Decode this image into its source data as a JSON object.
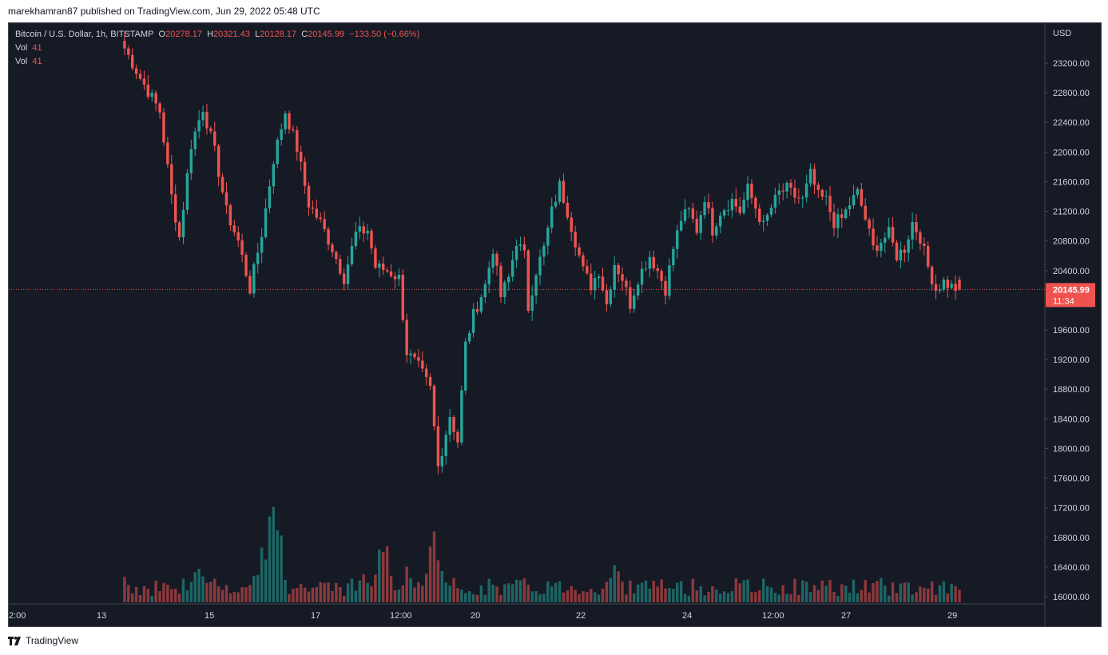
{
  "publish_info": "marekhamran87 published on TradingView.com, Jun 29, 2022 05:48 UTC",
  "legend": {
    "symbol": "Bitcoin / U.S. Dollar, 1h, BITSTAMP",
    "open_label": "O",
    "open": "20278.17",
    "high_label": "H",
    "high": "20321.43",
    "low_label": "L",
    "low": "20128.17",
    "close_label": "C",
    "close": "20145.99",
    "change": "−133.50 (−0.66%)",
    "vol1_label": "Vol",
    "vol1": "41",
    "vol2_label": "Vol",
    "vol2": "41"
  },
  "price_axis": {
    "currency": "USD",
    "ticks": [
      "23200.00",
      "22800.00",
      "22400.00",
      "22000.00",
      "21600.00",
      "21200.00",
      "20800.00",
      "20400.00",
      "19600.00",
      "19200.00",
      "18800.00",
      "18400.00",
      "18000.00",
      "17600.00",
      "17200.00",
      "16800.00",
      "16400.00",
      "16000.00"
    ],
    "last_price": "20145.99",
    "countdown": "11:34"
  },
  "time_axis": {
    "ticks": [
      "2:00",
      "13",
      "15",
      "17",
      "12:00",
      "20",
      "22",
      "24",
      "12:00",
      "27",
      "29"
    ]
  },
  "colors": {
    "up": "#26a69a",
    "down": "#ef5350",
    "background": "#161a25",
    "text": "#d1d4dc",
    "last_price_line": "#ef5350"
  },
  "footer": {
    "brand": "TradingView",
    "logo_icon": "tradingview-logo-icon"
  },
  "chart_data": {
    "type": "candlestick",
    "symbol": "Bitcoin / U.S. Dollar",
    "interval": "1h",
    "exchange": "BITSTAMP",
    "ylim": [
      15900,
      23500
    ],
    "x_ticks": [
      "2:00",
      "13",
      "15",
      "17",
      "12:00",
      "20",
      "22",
      "24",
      "12:00",
      "27",
      "29"
    ],
    "close_path": [
      [
        0,
        23500
      ],
      [
        5,
        23000
      ],
      [
        10,
        22550
      ],
      [
        13,
        21400
      ],
      [
        15,
        20850
      ],
      [
        18,
        22100
      ],
      [
        21,
        22600
      ],
      [
        24,
        22000
      ],
      [
        27,
        21200
      ],
      [
        30,
        20800
      ],
      [
        33,
        20150
      ],
      [
        36,
        20900
      ],
      [
        39,
        21900
      ],
      [
        42,
        22550
      ],
      [
        45,
        22050
      ],
      [
        48,
        21300
      ],
      [
        51,
        21050
      ],
      [
        54,
        20700
      ],
      [
        57,
        20300
      ],
      [
        60,
        20900
      ],
      [
        63,
        20950
      ],
      [
        65,
        20450
      ],
      [
        68,
        20400
      ],
      [
        71,
        20300
      ],
      [
        73,
        19300
      ],
      [
        76,
        19100
      ],
      [
        79,
        18800
      ],
      [
        81,
        17750
      ],
      [
        84,
        18450
      ],
      [
        86,
        18100
      ],
      [
        88,
        19400
      ],
      [
        90,
        19800
      ],
      [
        93,
        20200
      ],
      [
        95,
        20700
      ],
      [
        97,
        20050
      ],
      [
        99,
        20300
      ],
      [
        101,
        20800
      ],
      [
        103,
        20600
      ],
      [
        104,
        19900
      ],
      [
        106,
        20400
      ],
      [
        108,
        20700
      ],
      [
        110,
        21200
      ],
      [
        112,
        21550
      ],
      [
        114,
        21200
      ],
      [
        116,
        20800
      ],
      [
        118,
        20400
      ],
      [
        120,
        20200
      ],
      [
        122,
        20400
      ],
      [
        124,
        19950
      ],
      [
        126,
        20500
      ],
      [
        128,
        20300
      ],
      [
        130,
        19950
      ],
      [
        132,
        20300
      ],
      [
        135,
        20600
      ],
      [
        137,
        20400
      ],
      [
        139,
        20150
      ],
      [
        141,
        20700
      ],
      [
        143,
        21100
      ],
      [
        145,
        21200
      ],
      [
        147,
        20950
      ],
      [
        149,
        21400
      ],
      [
        151,
        20950
      ],
      [
        153,
        21200
      ],
      [
        156,
        21350
      ],
      [
        158,
        21200
      ],
      [
        160,
        21500
      ],
      [
        162,
        21250
      ],
      [
        164,
        21000
      ],
      [
        166,
        21250
      ],
      [
        168,
        21450
      ],
      [
        170,
        21500
      ],
      [
        172,
        21400
      ],
      [
        174,
        21350
      ],
      [
        176,
        21700
      ],
      [
        178,
        21400
      ],
      [
        180,
        21350
      ],
      [
        182,
        21050
      ],
      [
        184,
        21100
      ],
      [
        186,
        21300
      ],
      [
        188,
        21450
      ],
      [
        190,
        21100
      ],
      [
        192,
        20700
      ],
      [
        194,
        20800
      ],
      [
        196,
        20900
      ],
      [
        198,
        20600
      ],
      [
        200,
        20700
      ],
      [
        202,
        21050
      ],
      [
        204,
        20850
      ],
      [
        206,
        20450
      ],
      [
        208,
        20150
      ],
      [
        210,
        20250
      ],
      [
        212,
        20180
      ],
      [
        214,
        20145.99
      ]
    ],
    "volume_peaks": [
      [
        0,
        120
      ],
      [
        20,
        150
      ],
      [
        24,
        100
      ],
      [
        36,
        200
      ],
      [
        39,
        450
      ],
      [
        62,
        100
      ],
      [
        67,
        260
      ],
      [
        73,
        120
      ],
      [
        80,
        250
      ],
      [
        126,
        140
      ],
      [
        214,
        41
      ]
    ],
    "last": {
      "open": 20278.17,
      "high": 20321.43,
      "low": 20128.17,
      "close": 20145.99,
      "change": -133.5,
      "change_pct": -0.66,
      "volume": 41
    }
  }
}
